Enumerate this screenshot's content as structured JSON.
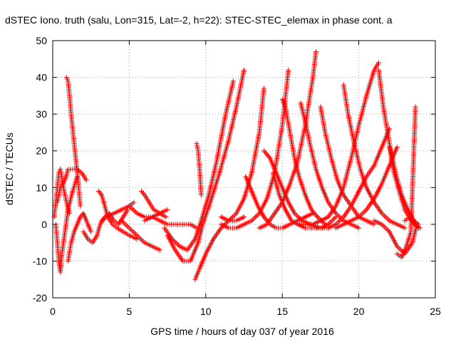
{
  "chart_data": {
    "type": "scatter",
    "title": "dSTEC Iono. truth (salu, Lon=315, Lat=-2, h=22): STEC-STEC_elemax in phase cont. a",
    "xlabel": "GPS time / hours of day 037 of year 2016",
    "ylabel": "dSTEC  / TECUs",
    "xlim": [
      0,
      25
    ],
    "ylim": [
      -20,
      50
    ],
    "xticks": [
      0,
      5,
      10,
      15,
      20,
      25
    ],
    "yticks": [
      -20,
      -10,
      0,
      10,
      20,
      30,
      40,
      50
    ],
    "xtick_labels": [
      "0",
      "5",
      "10",
      "15",
      "20",
      "25"
    ],
    "ytick_labels": [
      "-20",
      "-10",
      "0",
      "10",
      "20",
      "30",
      "40",
      "50"
    ],
    "grid": true,
    "marker": "+",
    "color": "#ff0000",
    "series": [
      {
        "x": [
          0.1,
          0.2,
          0.3,
          0.4,
          0.5,
          0.6,
          0.7,
          0.9,
          1.1
        ],
        "y": [
          2,
          6,
          10,
          14,
          15,
          13,
          10,
          6,
          3
        ]
      },
      {
        "x": [
          0.2,
          0.3,
          0.4,
          0.5,
          0.6,
          0.8,
          1.0,
          1.3,
          1.6
        ],
        "y": [
          0,
          -5,
          -10,
          -13,
          -8,
          -2,
          4,
          9,
          13
        ]
      },
      {
        "x": [
          0.9,
          1.0,
          1.1,
          1.2,
          1.3,
          1.4,
          1.5,
          1.6,
          1.7,
          1.8
        ],
        "y": [
          40,
          39,
          35,
          30,
          26,
          22,
          18,
          14,
          10,
          5
        ]
      },
      {
        "x": [
          0.3,
          0.5,
          0.8,
          1.0,
          1.3,
          1.6,
          1.9,
          2.2
        ],
        "y": [
          6,
          10,
          12,
          15,
          15,
          15,
          14,
          12
        ]
      },
      {
        "x": [
          1.0,
          1.2,
          1.4,
          1.6,
          1.8,
          2.0,
          2.2,
          2.5
        ],
        "y": [
          -10,
          -5,
          -2,
          0,
          2,
          3,
          1,
          -2
        ]
      },
      {
        "x": [
          2.0,
          2.3,
          2.6,
          2.9,
          3.1,
          3.4,
          3.7,
          4.0,
          4.3,
          4.6,
          4.9
        ],
        "y": [
          -2,
          -4,
          -5,
          -3,
          0,
          2,
          3,
          1,
          0,
          2,
          4
        ]
      },
      {
        "x": [
          3.0,
          3.2,
          3.4,
          3.6,
          3.9,
          4.2,
          4.6,
          5.0,
          5.5
        ],
        "y": [
          9,
          8,
          5,
          2,
          0,
          -1,
          -2,
          -3,
          -4
        ]
      },
      {
        "x": [
          3.2,
          3.5,
          4.0,
          4.5,
          5.0,
          5.3
        ],
        "y": [
          1,
          2,
          3,
          4,
          5,
          6
        ]
      },
      {
        "x": [
          4.5,
          5.0,
          5.5,
          6.0,
          6.5,
          7.0
        ],
        "y": [
          1,
          -1,
          -3,
          -5,
          -6,
          -7
        ]
      },
      {
        "x": [
          5.0,
          5.5,
          6.0,
          6.5,
          7.0,
          7.5
        ],
        "y": [
          5,
          3,
          2,
          2,
          3,
          4
        ]
      },
      {
        "x": [
          5.8,
          6.0,
          6.3,
          6.6,
          7.0,
          7.4
        ],
        "y": [
          9,
          8,
          6,
          4,
          3,
          2
        ]
      },
      {
        "x": [
          6.0,
          6.5,
          7.0,
          7.5,
          8.0,
          8.5,
          9.0,
          9.4
        ],
        "y": [
          1,
          2,
          1,
          0,
          0,
          0,
          0,
          -1
        ]
      },
      {
        "x": [
          7.3,
          7.8,
          8.3,
          8.8,
          9.3,
          9.7,
          10.2,
          10.7,
          11.3,
          11.8
        ],
        "y": [
          -1,
          -4,
          -6,
          -7,
          -4,
          1,
          8,
          17,
          30,
          39
        ]
      },
      {
        "x": [
          7.5,
          8.0,
          8.5,
          9.0,
          9.5,
          9.8,
          10.3,
          10.9,
          11.5,
          12.0,
          12.5
        ],
        "y": [
          -3,
          -7,
          -10,
          -10,
          -5,
          0,
          6,
          14,
          23,
          32,
          42
        ]
      },
      {
        "x": [
          9.3,
          9.6,
          10.0,
          10.5,
          11.0,
          11.5,
          12.0,
          12.5,
          13.0,
          13.5,
          13.8
        ],
        "y": [
          -15,
          -12,
          -8,
          -4,
          -1,
          1,
          3,
          7,
          14,
          25,
          37
        ]
      },
      {
        "x": [
          9.4,
          9.5,
          9.6,
          9.7
        ],
        "y": [
          22,
          20,
          15,
          8
        ]
      },
      {
        "x": [
          11.0,
          11.5,
          12.0,
          12.5,
          13.0,
          13.5,
          14.0,
          14.5,
          15.0,
          15.4
        ],
        "y": [
          0,
          -1,
          -1,
          0,
          1,
          3,
          7,
          14,
          27,
          42
        ]
      },
      {
        "x": [
          11.0,
          11.5,
          12.0,
          12.5
        ],
        "y": [
          2,
          1,
          1,
          2
        ]
      },
      {
        "x": [
          12.6,
          13.0,
          13.4,
          13.8,
          14.2,
          14.6,
          15.0,
          15.5,
          16.0,
          16.5,
          17.0
        ],
        "y": [
          13,
          9,
          5,
          2,
          0,
          -1,
          -1,
          0,
          1,
          2,
          3
        ]
      },
      {
        "x": [
          13.5,
          14.0,
          14.5,
          15.0,
          15.5,
          16.0,
          16.5,
          17.0,
          17.2
        ],
        "y": [
          -1,
          0,
          3,
          6,
          11,
          17,
          27,
          40,
          47
        ]
      },
      {
        "x": [
          13.8,
          14.2,
          14.6,
          15.0,
          15.4,
          15.8,
          16.3,
          16.8,
          17.5,
          18.0
        ],
        "y": [
          20,
          18,
          14,
          10,
          6,
          3,
          1,
          0,
          -1,
          -1
        ]
      },
      {
        "x": [
          14.4,
          14.8,
          15.2,
          15.6,
          16.0,
          16.5,
          17.0,
          17.5,
          18.0,
          18.5
        ],
        "y": [
          14,
          8,
          4,
          1,
          0,
          -1,
          -1,
          -1,
          0,
          2
        ]
      },
      {
        "x": [
          15.0,
          15.2,
          15.5,
          15.8,
          16.1,
          16.5,
          16.9,
          17.3,
          17.8
        ],
        "y": [
          34,
          32,
          25,
          18,
          13,
          8,
          4,
          2,
          0
        ]
      },
      {
        "x": [
          16.2,
          16.5,
          16.8,
          17.2,
          17.6,
          18.0,
          18.5,
          19.0,
          19.5,
          20.0
        ],
        "y": [
          33,
          28,
          22,
          15,
          10,
          6,
          3,
          1,
          0,
          -1
        ]
      },
      {
        "x": [
          16.0,
          16.5,
          17.0,
          17.5,
          18.0,
          18.5,
          19.0,
          19.5,
          20.0,
          20.5,
          21.0,
          21.3
        ],
        "y": [
          0,
          0,
          0,
          1,
          2,
          5,
          10,
          18,
          27,
          35,
          42,
          44
        ]
      },
      {
        "x": [
          17.5,
          17.8,
          18.2,
          18.6,
          19.0,
          19.5,
          20.0,
          20.5,
          21.0
        ],
        "y": [
          32,
          25,
          18,
          12,
          8,
          5,
          2,
          1,
          0
        ]
      },
      {
        "x": [
          18.0,
          18.5,
          19.0,
          19.5,
          20.0,
          20.5,
          21.0,
          21.5,
          22.0
        ],
        "y": [
          -1,
          0,
          2,
          5,
          9,
          13,
          16,
          21,
          26
        ]
      },
      {
        "x": [
          18.5,
          19.0,
          19.5,
          20.0,
          20.5,
          21.0,
          21.5,
          22.0,
          22.5
        ],
        "y": [
          -1,
          0,
          1,
          2,
          4,
          7,
          11,
          16,
          21
        ]
      },
      {
        "x": [
          19.0,
          19.3,
          19.7,
          20.1,
          20.5,
          21.0,
          21.5,
          22.0,
          22.5,
          23.0
        ],
        "y": [
          38,
          30,
          22,
          15,
          10,
          6,
          3,
          1,
          0,
          -1
        ]
      },
      {
        "x": [
          21.3,
          21.6,
          22.0,
          22.4,
          22.8,
          23.2,
          23.6,
          23.9
        ],
        "y": [
          42,
          32,
          22,
          14,
          8,
          4,
          1,
          0
        ]
      },
      {
        "x": [
          21.0,
          21.5,
          22.0,
          22.5,
          23.0,
          23.5,
          23.8
        ],
        "y": [
          1,
          0,
          -2,
          -6,
          -8,
          -5,
          0
        ]
      },
      {
        "x": [
          22.0,
          22.3,
          22.7,
          23.0,
          23.3,
          23.6,
          24.0
        ],
        "y": [
          21,
          14,
          8,
          4,
          2,
          0,
          -1
        ]
      },
      {
        "x": [
          22.5,
          22.8,
          23.1,
          23.4,
          23.7
        ],
        "y": [
          -8,
          -9,
          -6,
          -2,
          32
        ]
      },
      {
        "x": [
          23.0,
          23.3,
          23.6,
          23.9
        ],
        "y": [
          1,
          2,
          1,
          -1
        ]
      }
    ]
  }
}
